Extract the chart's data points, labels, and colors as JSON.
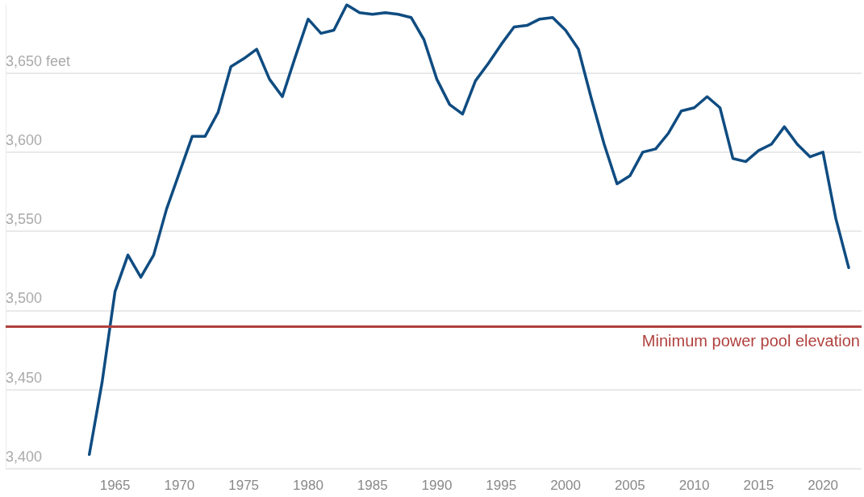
{
  "chart_data": {
    "type": "line",
    "x": [
      1963,
      1964,
      1965,
      1966,
      1967,
      1968,
      1969,
      1970,
      1971,
      1972,
      1973,
      1974,
      1975,
      1976,
      1977,
      1978,
      1979,
      1980,
      1981,
      1982,
      1983,
      1984,
      1985,
      1986,
      1987,
      1988,
      1989,
      1990,
      1991,
      1992,
      1993,
      1994,
      1995,
      1996,
      1997,
      1998,
      1999,
      2000,
      2001,
      2002,
      2003,
      2004,
      2005,
      2006,
      2007,
      2008,
      2009,
      2010,
      2011,
      2012,
      2013,
      2014,
      2015,
      2016,
      2017,
      2018,
      2019,
      2020,
      2021,
      2022
    ],
    "series": [
      {
        "color": "#0f4c81",
        "values": [
          3409,
          3455,
          3512,
          3535,
          3521,
          3535,
          3564,
          3587,
          3610,
          3610,
          3625,
          3654,
          3659,
          3665,
          3646,
          3635,
          3660,
          3684,
          3675,
          3677,
          3693,
          3688,
          3687,
          3688,
          3687,
          3685,
          3671,
          3646,
          3630,
          3624,
          3645,
          3656,
          3668,
          3679,
          3680,
          3684,
          3685,
          3677,
          3665,
          3634,
          3605,
          3580,
          3585,
          3600,
          3602,
          3612,
          3626,
          3628,
          3635,
          3628,
          3596,
          3594,
          3601,
          3605,
          3616,
          3605,
          3597,
          3600,
          3558,
          3527
        ]
      }
    ],
    "xlim": [
      1956.5,
      2023
    ],
    "xticks": [
      1965,
      1970,
      1975,
      1980,
      1985,
      1990,
      1995,
      2000,
      2005,
      2010,
      2015,
      2020
    ],
    "yticks": [
      {
        "value": 3400,
        "label": "3,400"
      },
      {
        "value": 3450,
        "label": "3,450"
      },
      {
        "value": 3500,
        "label": "3,500"
      },
      {
        "value": 3550,
        "label": "3,550"
      },
      {
        "value": 3600,
        "label": "3,600"
      },
      {
        "value": 3650,
        "label": "3,650 feet"
      }
    ],
    "ylim": [
      3400,
      3693
    ],
    "grid": "y",
    "marker": "none",
    "line_style": "solid",
    "ref_lines": [
      {
        "axis": "y",
        "value": 3490,
        "label": "Minimum power pool elevation",
        "color": "#b0413e"
      }
    ]
  }
}
